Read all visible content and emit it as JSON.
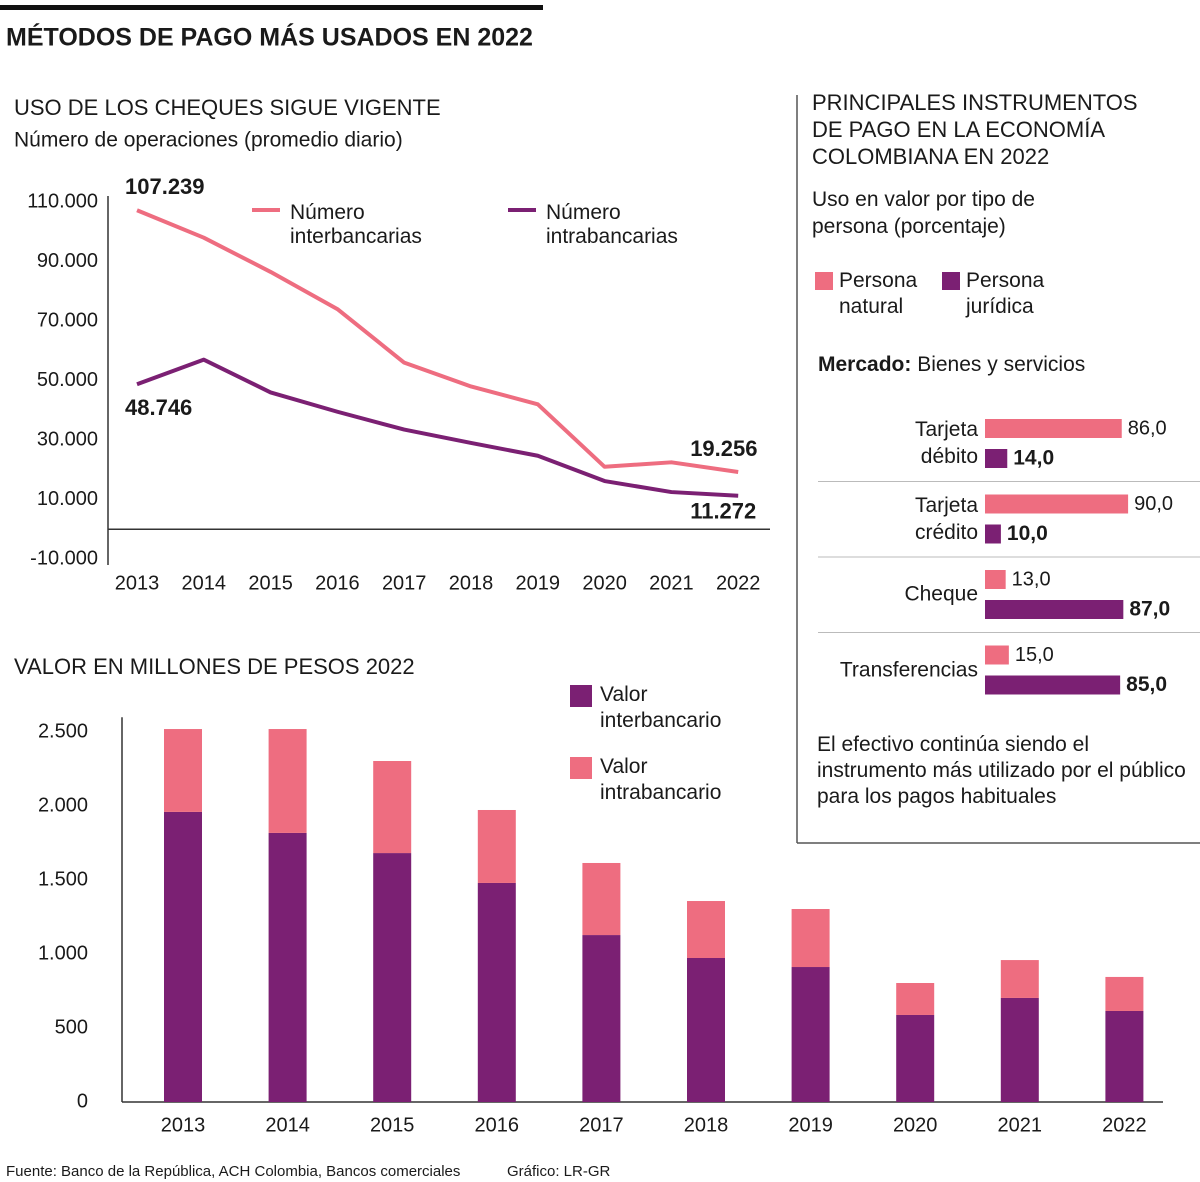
{
  "title": "MÉTODOS DE PAGO MÁS USADOS EN 2022",
  "chart_data": [
    {
      "type": "line",
      "title": "USO DE LOS CHEQUES SIGUE VIGENTE",
      "subtitle": "Número de operaciones (promedio diario)",
      "categories": [
        "2013",
        "2014",
        "2015",
        "2016",
        "2017",
        "2018",
        "2019",
        "2020",
        "2021",
        "2022"
      ],
      "series": [
        {
          "name": "Número interbancarias",
          "color": "#ee6d80",
          "values": [
            107239,
            98000,
            86500,
            74000,
            56000,
            48000,
            42000,
            21000,
            22500,
            19256
          ],
          "value_labels": [
            "107.239",
            null,
            null,
            null,
            null,
            null,
            null,
            null,
            null,
            "19.256"
          ]
        },
        {
          "name": "Número intrabancarias",
          "color": "#7b2073",
          "values": [
            48746,
            57000,
            46000,
            39500,
            33500,
            29000,
            24700,
            16200,
            12500,
            11272
          ],
          "value_labels": [
            "48.746",
            null,
            null,
            null,
            null,
            null,
            null,
            null,
            null,
            "11.272"
          ]
        }
      ],
      "ylim": [
        -10000,
        112000
      ],
      "yticks": [
        {
          "value": 110000,
          "label": "110.000"
        },
        {
          "value": 90000,
          "label": "90.000"
        },
        {
          "value": 70000,
          "label": "70.000"
        },
        {
          "value": 50000,
          "label": "50.000"
        },
        {
          "value": 30000,
          "label": "30.000"
        },
        {
          "value": 10000,
          "label": "10.000"
        },
        {
          "value": -10000,
          "label": "-10.000"
        }
      ]
    },
    {
      "type": "stacked-bar",
      "title": "VALOR EN MILLONES DE PESOS 2022",
      "categories": [
        "2013",
        "2014",
        "2015",
        "2016",
        "2017",
        "2018",
        "2019",
        "2020",
        "2021",
        "2022"
      ],
      "series": [
        {
          "name": "Valor interbancario",
          "color": "#7b2073",
          "values": [
            1960,
            1818,
            1682,
            1480,
            1128,
            973,
            912,
            588,
            703,
            615
          ]
        },
        {
          "name": "Valor intrabancario",
          "color": "#ee6d80",
          "values": [
            560,
            702,
            622,
            493,
            487,
            385,
            392,
            216,
            256,
            230
          ]
        }
      ],
      "ylim": [
        0,
        2600
      ],
      "yticks": [
        {
          "value": 2500,
          "label": "2.500"
        },
        {
          "value": 2000,
          "label": "2.000"
        },
        {
          "value": 1500,
          "label": "1.500"
        },
        {
          "value": 1000,
          "label": "1.000"
        },
        500,
        0
      ]
    },
    {
      "type": "hbar",
      "title": "PRINCIPALES INSTRUMENTOS DE PAGO EN LA ECONOMÍA COLOMBIANA EN 2022",
      "subtitle": "Uso en valor por tipo de persona (porcentaje)",
      "market_label": "Mercado:",
      "market": "Bienes y servicios",
      "categories": [
        "Tarjeta débito",
        "Tarjeta crédito",
        "Cheque",
        "Transferencias"
      ],
      "series": [
        {
          "name": "Persona natural",
          "color": "#ee6d80",
          "values": [
            86,
            90,
            13,
            15
          ],
          "value_labels": [
            "86,0",
            "90,0",
            "13,0",
            "15,0"
          ]
        },
        {
          "name": "Persona jurídica",
          "color": "#7b2073",
          "values": [
            14,
            10,
            87,
            85
          ],
          "value_labels": [
            "14,0",
            "10,0",
            "87,0",
            "85,0"
          ]
        }
      ],
      "note": "El efectivo continúa siendo el instrumento más utilizado por el público para los pagos habituales"
    }
  ],
  "source": "Fuente: Banco de la República, ACH Colombia, Bancos comerciales",
  "credit": "Gráfico: LR-GR"
}
